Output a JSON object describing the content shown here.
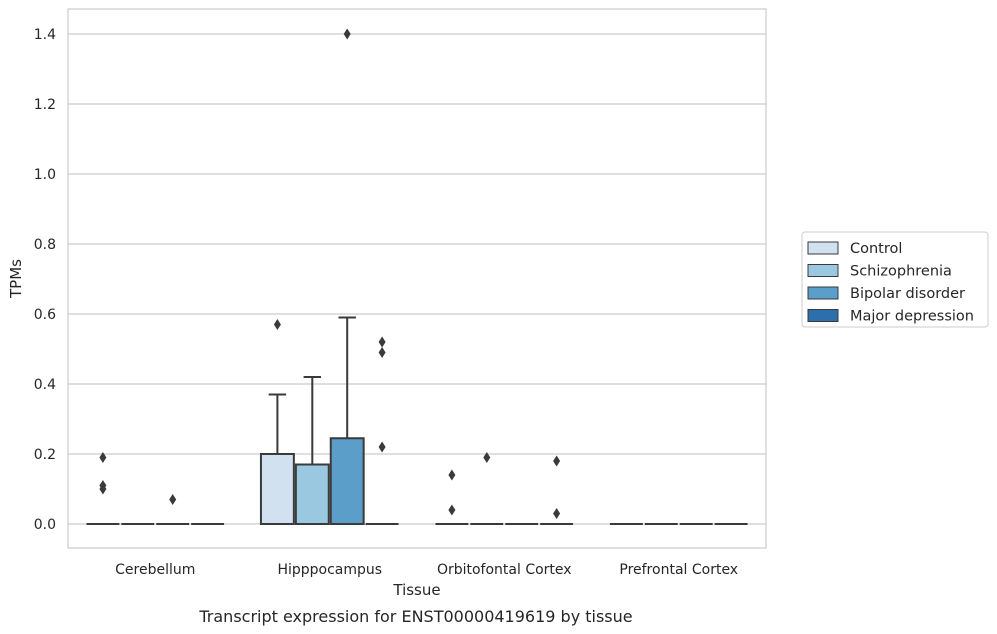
{
  "caption": "Transcript expression for ENST00000419619 by tissue",
  "chart_data": {
    "type": "box",
    "xlabel": "Tissue",
    "ylabel": "TPMs",
    "ylim": [
      -0.07,
      1.47
    ],
    "yticks": [
      "0.0",
      "0.2",
      "0.4",
      "0.6",
      "0.8",
      "1.0",
      "1.2",
      "1.4"
    ],
    "grid": true,
    "legend_position": "right",
    "categories": [
      "Cerebellum",
      "Hipppocampus",
      "Orbitofontal Cortex",
      "Prefrontal Cortex"
    ],
    "series": [
      {
        "name": "Control",
        "color": "#d1e1f0",
        "boxes": [
          {
            "q1": 0,
            "median": 0,
            "q3": 0,
            "whisker_low": 0,
            "whisker_high": 0,
            "outliers": [
              0.1,
              0.11,
              0.19
            ]
          },
          {
            "q1": 0,
            "median": 0,
            "q3": 0.2,
            "whisker_low": 0,
            "whisker_high": 0.37,
            "outliers": [
              0.57
            ]
          },
          {
            "q1": 0,
            "median": 0,
            "q3": 0,
            "whisker_low": 0,
            "whisker_high": 0,
            "outliers": [
              0.04,
              0.14
            ]
          },
          {
            "q1": 0,
            "median": 0,
            "q3": 0,
            "whisker_low": 0,
            "whisker_high": 0,
            "outliers": []
          }
        ]
      },
      {
        "name": "Schizophrenia",
        "color": "#9ac8e0",
        "boxes": [
          {
            "q1": 0,
            "median": 0,
            "q3": 0,
            "whisker_low": 0,
            "whisker_high": 0,
            "outliers": []
          },
          {
            "q1": 0,
            "median": 0,
            "q3": 0.17,
            "whisker_low": 0,
            "whisker_high": 0.42,
            "outliers": []
          },
          {
            "q1": 0,
            "median": 0,
            "q3": 0,
            "whisker_low": 0,
            "whisker_high": 0,
            "outliers": [
              0.19
            ]
          },
          {
            "q1": 0,
            "median": 0,
            "q3": 0,
            "whisker_low": 0,
            "whisker_high": 0,
            "outliers": []
          }
        ]
      },
      {
        "name": "Bipolar disorder",
        "color": "#5a9ec9",
        "boxes": [
          {
            "q1": 0,
            "median": 0,
            "q3": 0,
            "whisker_low": 0,
            "whisker_high": 0,
            "outliers": [
              0.07
            ]
          },
          {
            "q1": 0,
            "median": 0,
            "q3": 0.245,
            "whisker_low": 0,
            "whisker_high": 0.59,
            "outliers": [
              1.4
            ]
          },
          {
            "q1": 0,
            "median": 0,
            "q3": 0,
            "whisker_low": 0,
            "whisker_high": 0,
            "outliers": []
          },
          {
            "q1": 0,
            "median": 0,
            "q3": 0,
            "whisker_low": 0,
            "whisker_high": 0,
            "outliers": []
          }
        ]
      },
      {
        "name": "Major depression",
        "color": "#2d6fad",
        "boxes": [
          {
            "q1": 0,
            "median": 0,
            "q3": 0,
            "whisker_low": 0,
            "whisker_high": 0,
            "outliers": []
          },
          {
            "q1": 0,
            "median": 0,
            "q3": 0,
            "whisker_low": 0,
            "whisker_high": 0,
            "outliers": [
              0.22,
              0.49,
              0.52
            ]
          },
          {
            "q1": 0,
            "median": 0,
            "q3": 0,
            "whisker_low": 0,
            "whisker_high": 0,
            "outliers": [
              0.03,
              0.18
            ]
          },
          {
            "q1": 0,
            "median": 0,
            "q3": 0,
            "whisker_low": 0,
            "whisker_high": 0,
            "outliers": []
          }
        ]
      }
    ]
  }
}
